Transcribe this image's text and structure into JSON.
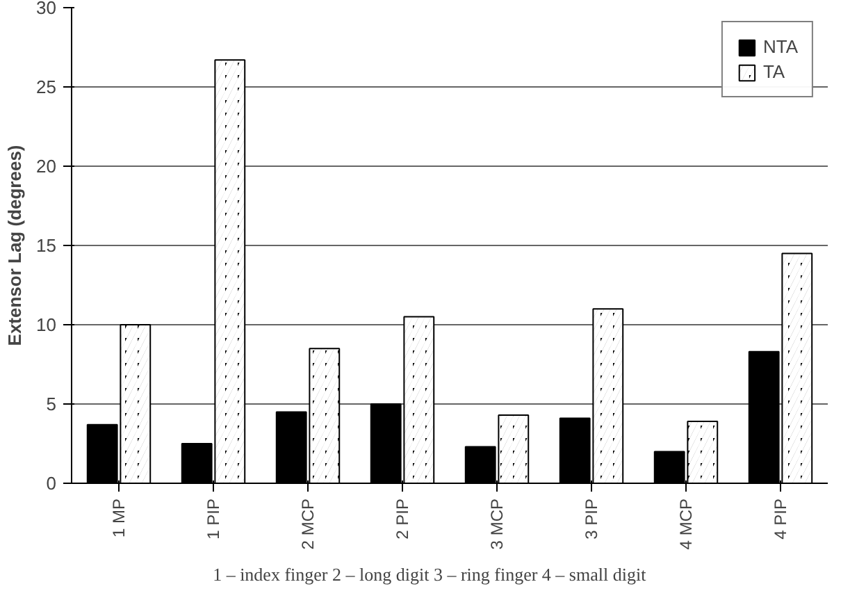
{
  "chart_data": {
    "type": "bar",
    "ylabel": "Extensor Lag (degrees)",
    "categories": [
      "1 MP",
      "1 PIP",
      "2 MCP",
      "2 PIP",
      "3 MCP",
      "3 PIP",
      "4 MCP",
      "4 PIP"
    ],
    "series": [
      {
        "name": "NTA",
        "color": "#000000",
        "values": [
          3.7,
          2.5,
          4.5,
          5.0,
          2.3,
          4.1,
          2.0,
          8.3
        ]
      },
      {
        "name": "TA",
        "color": "#000000",
        "values": [
          10.0,
          26.7,
          8.5,
          10.5,
          4.3,
          11.0,
          3.9,
          14.5
        ]
      }
    ],
    "ylim": [
      0,
      30
    ],
    "yticks": [
      0,
      5,
      10,
      15,
      20,
      25,
      30
    ],
    "grid": "y",
    "legend": "top right",
    "annotations": [
      "1 – index finger    2 – long digit    3 – ring finger    4 – small digit"
    ]
  }
}
